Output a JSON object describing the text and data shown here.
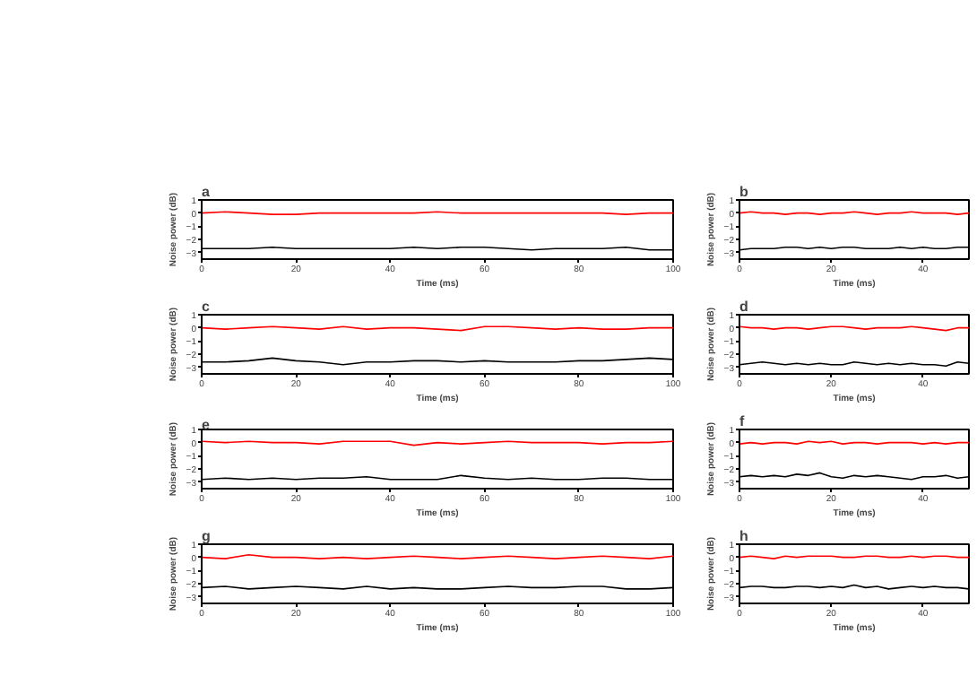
{
  "chart_data": [
    {
      "type": "line",
      "title": "a",
      "xlabel": "Time (ms)",
      "ylabel": "Noise power (dB)",
      "xlim": [
        0,
        100
      ],
      "xticks": [
        0,
        20,
        40,
        60,
        80,
        100
      ],
      "ylim": [
        -3.5,
        1
      ],
      "yticks": [
        -3,
        -2,
        -1,
        0,
        1
      ],
      "x": [
        0,
        5,
        10,
        15,
        20,
        25,
        30,
        35,
        40,
        45,
        50,
        55,
        60,
        65,
        70,
        75,
        80,
        85,
        90,
        95,
        100
      ],
      "series": [
        {
          "color": "#ff0000",
          "values": [
            0,
            0.1,
            0,
            -0.1,
            -0.1,
            0,
            0,
            0,
            0,
            0,
            0.1,
            0,
            0,
            0,
            0,
            0,
            0,
            0,
            -0.1,
            0,
            0
          ]
        },
        {
          "color": "#000000",
          "values": [
            -2.7,
            -2.7,
            -2.7,
            -2.6,
            -2.7,
            -2.7,
            -2.7,
            -2.7,
            -2.7,
            -2.6,
            -2.7,
            -2.6,
            -2.6,
            -2.7,
            -2.8,
            -2.7,
            -2.7,
            -2.7,
            -2.6,
            -2.8,
            -2.8
          ]
        }
      ]
    },
    {
      "type": "line",
      "title": "b",
      "xlabel": "Time (ms)",
      "ylabel": "Noise power (dB)",
      "xlim": [
        0,
        50
      ],
      "xticks": [
        0,
        20,
        40
      ],
      "ylim": [
        -3.5,
        1
      ],
      "yticks": [
        -3,
        -2,
        -1,
        0,
        1
      ],
      "x": [
        0,
        2.5,
        5,
        7.5,
        10,
        12.5,
        15,
        17.5,
        20,
        22.5,
        25,
        27.5,
        30,
        32.5,
        35,
        37.5,
        40,
        42.5,
        45,
        47.5,
        50
      ],
      "series": [
        {
          "color": "#ff0000",
          "values": [
            0,
            0.1,
            0,
            0,
            -0.1,
            0,
            0,
            -0.1,
            0,
            0,
            0.1,
            0,
            -0.1,
            0,
            0,
            0.1,
            0,
            0,
            0,
            -0.1,
            0
          ]
        },
        {
          "color": "#000000",
          "values": [
            -2.8,
            -2.7,
            -2.7,
            -2.7,
            -2.6,
            -2.6,
            -2.7,
            -2.6,
            -2.7,
            -2.6,
            -2.6,
            -2.7,
            -2.7,
            -2.7,
            -2.6,
            -2.7,
            -2.6,
            -2.7,
            -2.7,
            -2.6,
            -2.6
          ]
        }
      ]
    },
    {
      "type": "line",
      "title": "c",
      "xlabel": "Time (ms)",
      "ylabel": "Noise power (dB)",
      "xlim": [
        0,
        100
      ],
      "xticks": [
        0,
        20,
        40,
        60,
        80,
        100
      ],
      "ylim": [
        -3.5,
        1
      ],
      "yticks": [
        -3,
        -2,
        -1,
        0,
        1
      ],
      "x": [
        0,
        5,
        10,
        15,
        20,
        25,
        30,
        35,
        40,
        45,
        50,
        55,
        60,
        65,
        70,
        75,
        80,
        85,
        90,
        95,
        100
      ],
      "series": [
        {
          "color": "#ff0000",
          "values": [
            0,
            -0.1,
            0,
            0.1,
            0,
            -0.1,
            0.1,
            -0.1,
            0,
            0,
            -0.1,
            -0.2,
            0.1,
            0.1,
            0,
            -0.1,
            0,
            -0.1,
            -0.1,
            0,
            0
          ]
        },
        {
          "color": "#000000",
          "values": [
            -2.6,
            -2.6,
            -2.5,
            -2.3,
            -2.5,
            -2.6,
            -2.8,
            -2.6,
            -2.6,
            -2.5,
            -2.5,
            -2.6,
            -2.5,
            -2.6,
            -2.6,
            -2.6,
            -2.5,
            -2.5,
            -2.4,
            -2.3,
            -2.4
          ]
        }
      ]
    },
    {
      "type": "line",
      "title": "d",
      "xlabel": "Time (ms)",
      "ylabel": "Noise power (dB)",
      "xlim": [
        0,
        50
      ],
      "xticks": [
        0,
        20,
        40
      ],
      "ylim": [
        -3.5,
        1
      ],
      "yticks": [
        -3,
        -2,
        -1,
        0,
        1
      ],
      "x": [
        0,
        2.5,
        5,
        7.5,
        10,
        12.5,
        15,
        17.5,
        20,
        22.5,
        25,
        27.5,
        30,
        32.5,
        35,
        37.5,
        40,
        42.5,
        45,
        47.5,
        50
      ],
      "series": [
        {
          "color": "#ff0000",
          "values": [
            0.1,
            0,
            0,
            -0.1,
            0,
            0,
            -0.1,
            0,
            0.1,
            0.1,
            0,
            -0.1,
            0,
            0,
            0,
            0.1,
            0,
            -0.1,
            -0.2,
            0,
            0
          ]
        },
        {
          "color": "#000000",
          "values": [
            -2.8,
            -2.7,
            -2.6,
            -2.7,
            -2.8,
            -2.7,
            -2.8,
            -2.7,
            -2.8,
            -2.8,
            -2.6,
            -2.7,
            -2.8,
            -2.7,
            -2.8,
            -2.7,
            -2.8,
            -2.8,
            -2.9,
            -2.6,
            -2.7
          ]
        }
      ]
    },
    {
      "type": "line",
      "title": "e",
      "xlabel": "Time (ms)",
      "ylabel": "Noise power (dB)",
      "xlim": [
        0,
        100
      ],
      "xticks": [
        0,
        20,
        40,
        60,
        80,
        100
      ],
      "ylim": [
        -3.5,
        1
      ],
      "yticks": [
        -3,
        -2,
        -1,
        0,
        1
      ],
      "x": [
        0,
        5,
        10,
        15,
        20,
        25,
        30,
        35,
        40,
        45,
        50,
        55,
        60,
        65,
        70,
        75,
        80,
        85,
        90,
        95,
        100
      ],
      "series": [
        {
          "color": "#ff0000",
          "values": [
            0.1,
            0,
            0.1,
            0,
            0,
            -0.1,
            0.1,
            0.1,
            0.1,
            -0.2,
            0,
            -0.1,
            0,
            0.1,
            0,
            0,
            0,
            -0.1,
            0,
            0,
            0.1
          ]
        },
        {
          "color": "#000000",
          "values": [
            -2.8,
            -2.7,
            -2.8,
            -2.7,
            -2.8,
            -2.7,
            -2.7,
            -2.6,
            -2.8,
            -2.8,
            -2.8,
            -2.5,
            -2.7,
            -2.8,
            -2.7,
            -2.8,
            -2.8,
            -2.7,
            -2.7,
            -2.8,
            -2.8
          ]
        }
      ]
    },
    {
      "type": "line",
      "title": "f",
      "xlabel": "Time (ms)",
      "ylabel": "Noise power (dB)",
      "xlim": [
        0,
        50
      ],
      "xticks": [
        0,
        20,
        40
      ],
      "ylim": [
        -3.5,
        1
      ],
      "yticks": [
        -3,
        -2,
        -1,
        0,
        1
      ],
      "x": [
        0,
        2.5,
        5,
        7.5,
        10,
        12.5,
        15,
        17.5,
        20,
        22.5,
        25,
        27.5,
        30,
        32.5,
        35,
        37.5,
        40,
        42.5,
        45,
        47.5,
        50
      ],
      "series": [
        {
          "color": "#ff0000",
          "values": [
            -0.1,
            0,
            -0.1,
            0,
            0,
            -0.1,
            0.1,
            0,
            0.1,
            -0.1,
            0,
            0,
            -0.1,
            0,
            0,
            0,
            -0.1,
            0,
            -0.1,
            0,
            0
          ]
        },
        {
          "color": "#000000",
          "values": [
            -2.6,
            -2.5,
            -2.6,
            -2.5,
            -2.6,
            -2.4,
            -2.5,
            -2.3,
            -2.6,
            -2.7,
            -2.5,
            -2.6,
            -2.5,
            -2.6,
            -2.7,
            -2.8,
            -2.6,
            -2.6,
            -2.5,
            -2.7,
            -2.6
          ]
        }
      ]
    },
    {
      "type": "line",
      "title": "g",
      "xlabel": "Time (ms)",
      "ylabel": "Noise power (dB)",
      "xlim": [
        0,
        100
      ],
      "xticks": [
        0,
        20,
        40,
        60,
        80,
        100
      ],
      "ylim": [
        -3.5,
        1
      ],
      "yticks": [
        -3,
        -2,
        -1,
        0,
        1
      ],
      "x": [
        0,
        5,
        10,
        15,
        20,
        25,
        30,
        35,
        40,
        45,
        50,
        55,
        60,
        65,
        70,
        75,
        80,
        85,
        90,
        95,
        100
      ],
      "series": [
        {
          "color": "#ff0000",
          "values": [
            0,
            -0.1,
            0.2,
            0,
            0,
            -0.1,
            0,
            -0.1,
            0,
            0.1,
            0,
            -0.1,
            0,
            0.1,
            0,
            -0.1,
            0,
            0.1,
            0,
            -0.1,
            0.1
          ]
        },
        {
          "color": "#000000",
          "values": [
            -2.3,
            -2.2,
            -2.4,
            -2.3,
            -2.2,
            -2.3,
            -2.4,
            -2.2,
            -2.4,
            -2.3,
            -2.4,
            -2.4,
            -2.3,
            -2.2,
            -2.3,
            -2.3,
            -2.2,
            -2.2,
            -2.4,
            -2.4,
            -2.3
          ]
        }
      ]
    },
    {
      "type": "line",
      "title": "h",
      "xlabel": "Time (ms)",
      "ylabel": "Noise power (dB)",
      "xlim": [
        0,
        50
      ],
      "xticks": [
        0,
        20,
        40
      ],
      "ylim": [
        -3.5,
        1
      ],
      "yticks": [
        -3,
        -2,
        -1,
        0,
        1
      ],
      "x": [
        0,
        2.5,
        5,
        7.5,
        10,
        12.5,
        15,
        17.5,
        20,
        22.5,
        25,
        27.5,
        30,
        32.5,
        35,
        37.5,
        40,
        42.5,
        45,
        47.5,
        50
      ],
      "series": [
        {
          "color": "#ff0000",
          "values": [
            0,
            0.1,
            0,
            -0.1,
            0.1,
            0,
            0.1,
            0.1,
            0.1,
            0,
            0,
            0.1,
            0.1,
            0,
            0,
            0.1,
            0,
            0.1,
            0.1,
            0,
            0
          ]
        },
        {
          "color": "#000000",
          "values": [
            -2.3,
            -2.2,
            -2.2,
            -2.3,
            -2.3,
            -2.2,
            -2.2,
            -2.3,
            -2.2,
            -2.3,
            -2.1,
            -2.3,
            -2.2,
            -2.4,
            -2.3,
            -2.2,
            -2.3,
            -2.2,
            -2.3,
            -2.3,
            -2.4
          ]
        }
      ]
    }
  ]
}
